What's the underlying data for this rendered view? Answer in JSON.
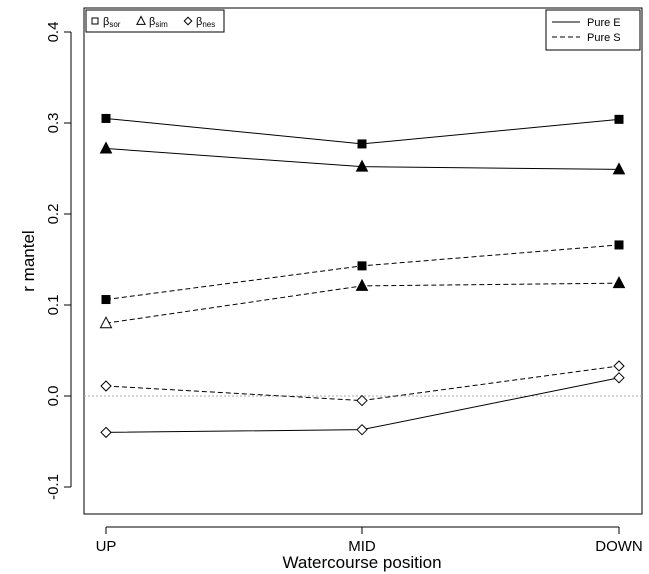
{
  "chart_data": {
    "type": "line",
    "title": "",
    "xlabel": "Watercourse position",
    "ylabel": "r mantel",
    "categories": [
      "UP",
      "MID",
      "DOWN"
    ],
    "ylim": [
      -0.13,
      0.42
    ],
    "yticks": [
      -0.1,
      0.0,
      0.1,
      0.2,
      0.3,
      0.4
    ],
    "ytick_labels": [
      "-0.1",
      "0.0",
      "0.1",
      "0.2",
      "0.3",
      "0.4"
    ],
    "reference_line": {
      "y": 0.0,
      "style": "dotted",
      "color": "#aaaaaa"
    },
    "grid": false,
    "marker_legend": {
      "placement": "top-left",
      "entries": [
        {
          "marker": "square",
          "symbol": "β",
          "sub": "sor"
        },
        {
          "marker": "triangle",
          "symbol": "β",
          "sub": "sim"
        },
        {
          "marker": "diamond",
          "symbol": "β",
          "sub": "nes"
        }
      ]
    },
    "line_legend": {
      "placement": "top-right",
      "entries": [
        {
          "label": "Pure E",
          "dash": "solid"
        },
        {
          "label": "Pure S",
          "dash": "dashed"
        }
      ]
    },
    "series": [
      {
        "index": "sor",
        "component": "Pure E",
        "dash": "solid",
        "marker": "square",
        "filled": true,
        "values": [
          0.305,
          0.277,
          0.304
        ]
      },
      {
        "index": "sim",
        "component": "Pure E",
        "dash": "solid",
        "marker": "triangle",
        "filled": true,
        "values": [
          0.272,
          0.252,
          0.249
        ]
      },
      {
        "index": "sor",
        "component": "Pure S",
        "dash": "dashed",
        "marker": "square",
        "filled": true,
        "values": [
          0.106,
          0.143,
          0.166
        ]
      },
      {
        "index": "sim",
        "component": "Pure S",
        "dash": "dashed",
        "marker": "triangle",
        "filled": [
          false,
          true,
          true
        ],
        "values": [
          0.08,
          0.121,
          0.124
        ]
      },
      {
        "index": "nes",
        "component": "Pure S",
        "dash": "dashed",
        "marker": "diamond",
        "filled": false,
        "values": [
          0.011,
          -0.005,
          0.033
        ]
      },
      {
        "index": "nes",
        "component": "Pure E",
        "dash": "solid",
        "marker": "diamond",
        "filled": false,
        "values": [
          -0.04,
          -0.037,
          0.02
        ]
      }
    ]
  }
}
